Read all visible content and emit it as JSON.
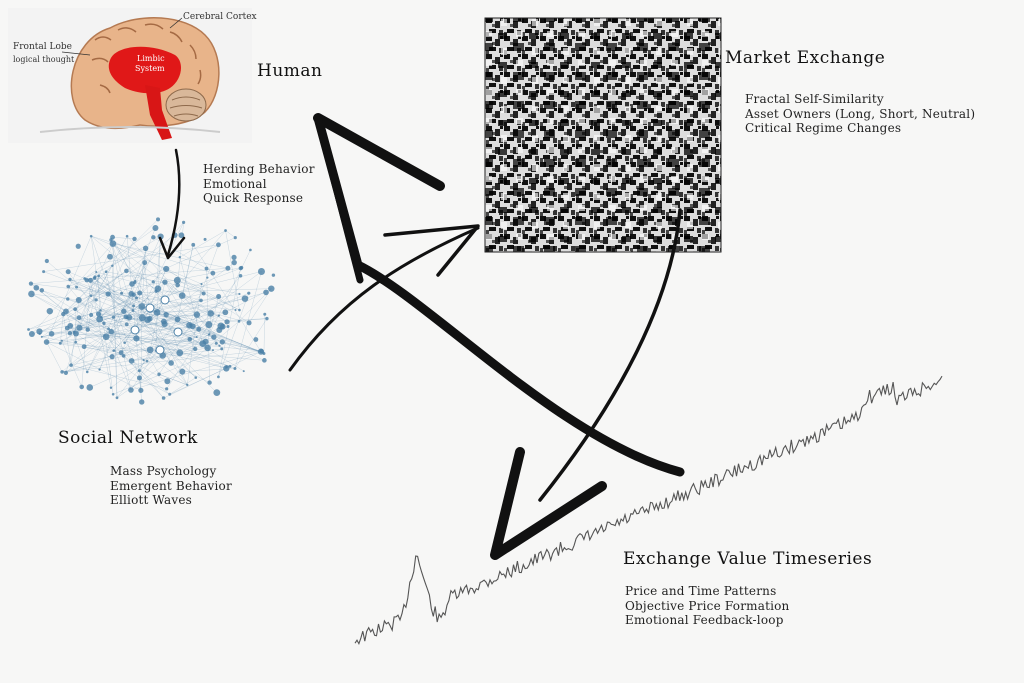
{
  "nodes": {
    "human": {
      "title": "Human",
      "brain_labels": {
        "cortex": "Cerebral Cortex",
        "frontal": "Frontal Lobe",
        "frontal_sub": "logical thought",
        "limbic": "Limbic",
        "limbic_sub": "System"
      }
    },
    "human_to_social": {
      "lines": [
        "Herding Behavior",
        "Emotional",
        "Quick Response"
      ]
    },
    "market": {
      "title": "Market Exchange",
      "lines": [
        "Fractal Self-Similarity",
        "Asset Owners (Long, Short, Neutral)",
        "Critical Regime Changes"
      ]
    },
    "social": {
      "title": "Social Network",
      "lines": [
        "Mass Psychology",
        "Emergent Behavior",
        "Elliott Waves"
      ]
    },
    "timeseries": {
      "title": "Exchange Value Timeseries",
      "lines": [
        "Price and Time Patterns",
        "Objective Price Formation",
        "Emotional Feedback-loop"
      ]
    }
  },
  "icons": [
    "brain-icon",
    "noise-texture-icon",
    "network-graph-icon",
    "price-chart-icon"
  ],
  "colors": {
    "network": "#4a7fa6",
    "brain": "#e8b48a",
    "limbic": "#e01818",
    "arrow": "#111111"
  }
}
